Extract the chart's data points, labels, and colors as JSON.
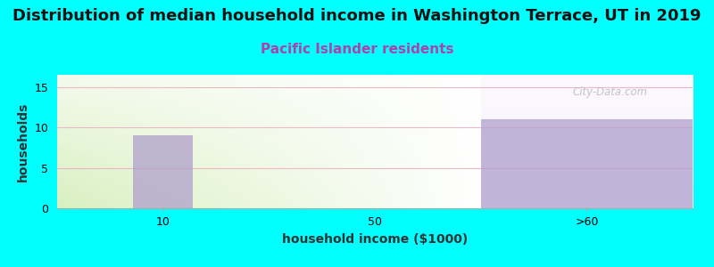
{
  "title": "Distribution of median household income in Washington Terrace, UT in 2019",
  "subtitle": "Pacific Islander residents",
  "xlabel": "household income ($1000)",
  "ylabel": "households",
  "categories": [
    "10",
    "50",
    ">60"
  ],
  "bar1_value": 9,
  "bar2_value": 11,
  "bar_color": "#b09fcc",
  "bar_alpha": 0.75,
  "ylim": [
    0,
    16.5
  ],
  "yticks": [
    0,
    5,
    10,
    15
  ],
  "background_color": "#00FFFF",
  "title_fontsize": 13,
  "subtitle_fontsize": 11,
  "subtitle_color": "#aa44aa",
  "axis_label_fontsize": 10,
  "tick_fontsize": 9,
  "watermark": "City-Data.com",
  "grid_color": "#f0b0c0",
  "grid_alpha": 0.9
}
